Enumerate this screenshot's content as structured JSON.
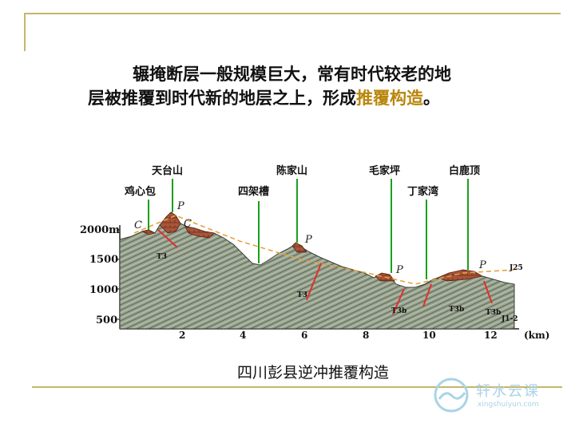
{
  "paragraph": {
    "line1": "辗掩断层一般规模巨大，常有时代较老的地",
    "line2_before": "层被推覆到时代新的地层之上，形成",
    "line2_highlight": "推覆构造",
    "line2_after": "。"
  },
  "caption": "四川彭县逆冲推覆构造",
  "places": {
    "jixinbao": "鸡心包",
    "tiantaishan": "天台山",
    "sijiacao": "四架槽",
    "chenjiashan": "陈家山",
    "maojiaping": "毛家坪",
    "dingjiawan": "丁家湾",
    "bailuding": "白鹿顶"
  },
  "elevation_labels": [
    "2000m",
    "1500",
    "1000",
    "500"
  ],
  "distance_labels": [
    "2",
    "4",
    "6",
    "8",
    "10",
    "12"
  ],
  "distance_unit": "(km)",
  "markers": {
    "c": "C",
    "p": "P",
    "j25": "J25",
    "t3": "T3",
    "t3b": "T3b",
    "j1": "J1-2"
  },
  "logo": {
    "name": "轩水云课",
    "url": "xingshuiyun.com"
  },
  "colors": {
    "frame": "#c8b46a",
    "highlight": "#b8860b",
    "terrain": "#8f9a86",
    "klippe": "#a8553a",
    "fault": "#e0302a",
    "marker_line": "#1aa01a",
    "envelope": "#e8a23a"
  }
}
